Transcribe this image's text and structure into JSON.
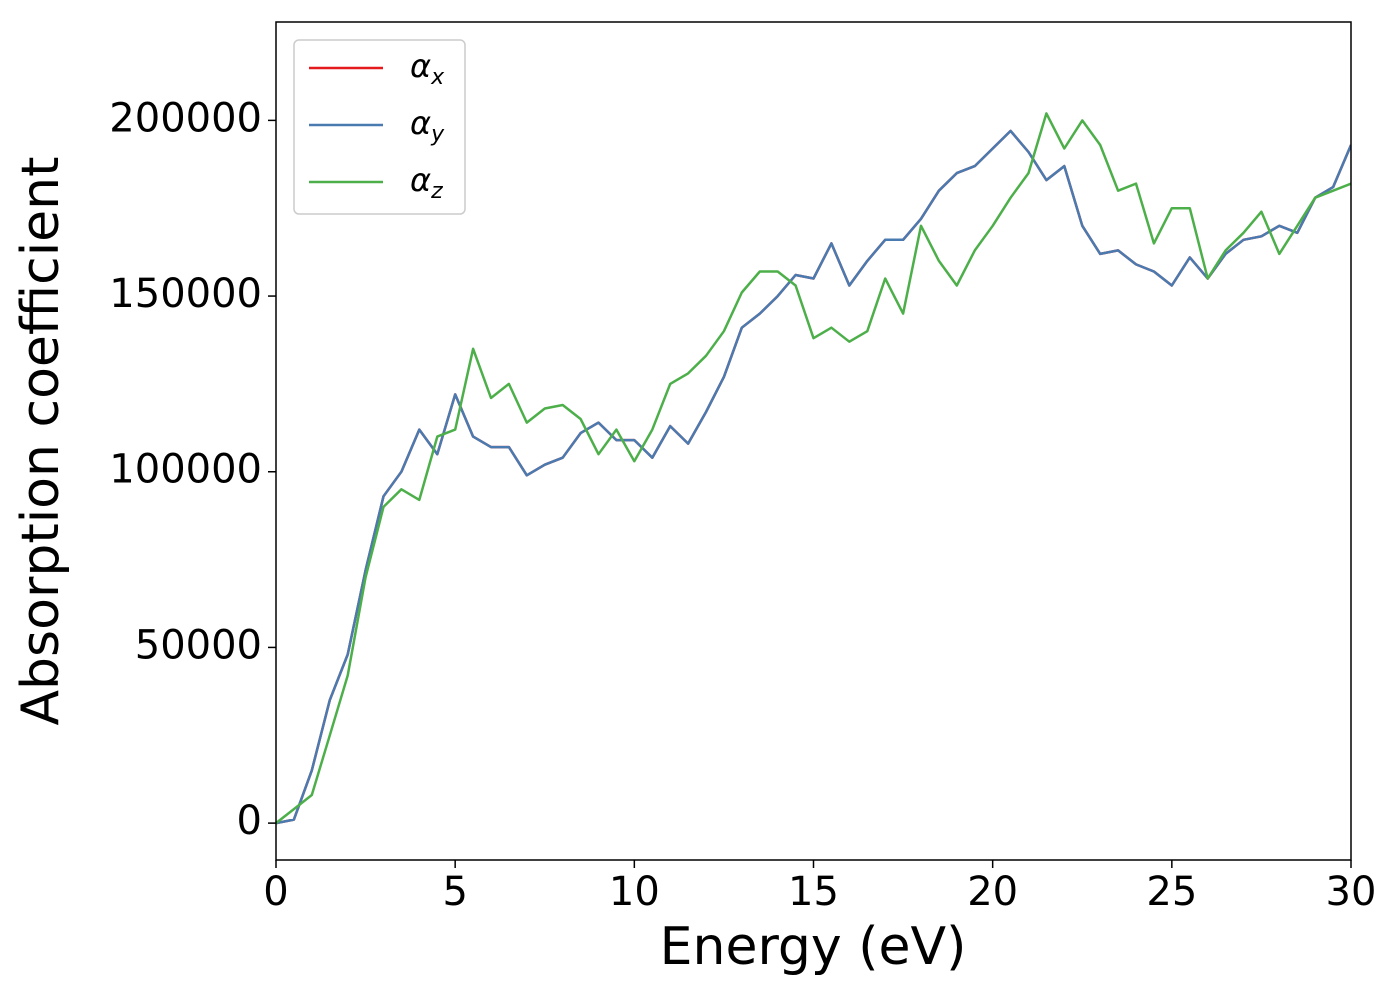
{
  "chart_data": {
    "type": "line",
    "xlabel": "Energy (eV)",
    "ylabel": "Absorption coefficient",
    "x": [
      0,
      0.5,
      1,
      1.5,
      2,
      2.5,
      3,
      3.5,
      4,
      4.5,
      5,
      5.5,
      6,
      6.5,
      7,
      7.5,
      8,
      8.5,
      9,
      9.5,
      10,
      10.5,
      11,
      11.5,
      12,
      12.5,
      13,
      13.5,
      14,
      14.5,
      15,
      15.5,
      16,
      16.5,
      17,
      17.5,
      18,
      18.5,
      19,
      19.5,
      20,
      20.5,
      21,
      21.5,
      22,
      22.5,
      23,
      23.5,
      24,
      24.5,
      25,
      25.5,
      26,
      26.5,
      27,
      27.5,
      28,
      28.5,
      29,
      29.5,
      30
    ],
    "series": [
      {
        "name": "αx",
        "color": "#e41a1c",
        "values": [
          0,
          1000,
          15000,
          35000,
          48000,
          72000,
          93000,
          100000,
          112000,
          105000,
          122000,
          110000,
          107000,
          107000,
          99000,
          102000,
          104000,
          111000,
          114000,
          109000,
          109000,
          104000,
          113000,
          108000,
          117000,
          127000,
          141000,
          145000,
          150000,
          156000,
          155000,
          165000,
          153000,
          160000,
          166000,
          166000,
          172000,
          180000,
          185000,
          187000,
          192000,
          197000,
          191000,
          183000,
          187000,
          170000,
          162000,
          163000,
          159000,
          157000,
          153000,
          161000,
          155000,
          162000,
          166000,
          167000,
          170000,
          168000,
          178000,
          181000,
          193000
        ]
      },
      {
        "name": "αy",
        "color": "#4a7bb0",
        "values": [
          0,
          1000,
          15000,
          35000,
          48000,
          72000,
          93000,
          100000,
          112000,
          105000,
          122000,
          110000,
          107000,
          107000,
          99000,
          102000,
          104000,
          111000,
          114000,
          109000,
          109000,
          104000,
          113000,
          108000,
          117000,
          127000,
          141000,
          145000,
          150000,
          156000,
          155000,
          165000,
          153000,
          160000,
          166000,
          166000,
          172000,
          180000,
          185000,
          187000,
          192000,
          197000,
          191000,
          183000,
          187000,
          170000,
          162000,
          163000,
          159000,
          157000,
          153000,
          161000,
          155000,
          162000,
          166000,
          167000,
          170000,
          168000,
          178000,
          181000,
          193000
        ]
      },
      {
        "name": "αz",
        "color": "#4daf4a",
        "values": [
          0,
          4000,
          8000,
          25000,
          42000,
          70000,
          90000,
          95000,
          92000,
          110000,
          112000,
          135000,
          121000,
          125000,
          114000,
          118000,
          119000,
          115000,
          105000,
          112000,
          103000,
          112000,
          125000,
          128000,
          133000,
          140000,
          151000,
          157000,
          157000,
          153000,
          138000,
          141000,
          137000,
          140000,
          155000,
          145000,
          170000,
          160000,
          153000,
          163000,
          170000,
          178000,
          185000,
          202000,
          192000,
          200000,
          193000,
          180000,
          182000,
          165000,
          175000,
          175000,
          155000,
          163000,
          168000,
          174000,
          162000,
          170000,
          178000,
          180000,
          182000
        ]
      }
    ],
    "xlim": [
      0,
      30
    ],
    "xticks": [
      0,
      5,
      10,
      15,
      20,
      25,
      30
    ],
    "ylim": [
      -10500,
      228000
    ],
    "yticks": [
      0,
      50000,
      100000,
      150000,
      200000
    ],
    "legend": "upper left"
  }
}
